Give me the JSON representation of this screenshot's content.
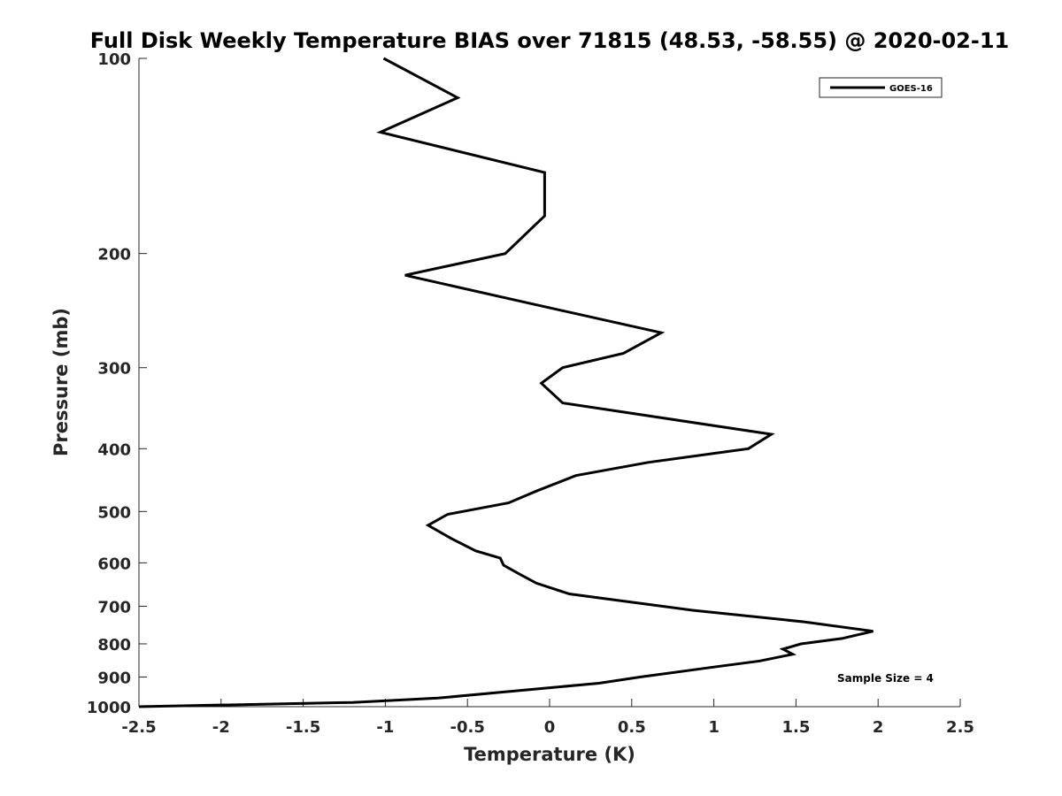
{
  "chart_data": {
    "type": "line",
    "title": "Full Disk Weekly Temperature BIAS over 71815 (48.53, -58.55) @ 2020-02-11",
    "xlabel": "Temperature (K)",
    "ylabel": "Pressure (mb)",
    "xlim": [
      -2.5,
      2.5
    ],
    "ylim": [
      100,
      1000
    ],
    "y_scale": "log",
    "y_reversed": true,
    "x_ticks": [
      "-2.5",
      "-2",
      "-1.5",
      "-1",
      "-0.5",
      "0",
      "0.5",
      "1",
      "1.5",
      "2",
      "2.5"
    ],
    "y_ticks": [
      "100",
      "200",
      "300",
      "400",
      "500",
      "600",
      "700",
      "800",
      "900",
      "1000"
    ],
    "grid": false,
    "legend": {
      "position": "top-right"
    },
    "annotation": "Sample Size = 4",
    "series": [
      {
        "name": "GOES-16",
        "color": "#000000",
        "points": [
          [
            -1.01,
            100
          ],
          [
            -0.56,
            115
          ],
          [
            -1.03,
            130
          ],
          [
            -0.03,
            150
          ],
          [
            -0.03,
            175
          ],
          [
            -0.27,
            200
          ],
          [
            -0.88,
            216
          ],
          [
            -0.08,
            240
          ],
          [
            0.68,
            265
          ],
          [
            0.45,
            285
          ],
          [
            0.08,
            300
          ],
          [
            -0.05,
            317
          ],
          [
            0.08,
            340
          ],
          [
            1.35,
            380
          ],
          [
            1.21,
            400
          ],
          [
            0.6,
            420
          ],
          [
            0.16,
            440
          ],
          [
            -0.08,
            465
          ],
          [
            -0.25,
            485
          ],
          [
            -0.62,
            505
          ],
          [
            -0.74,
            525
          ],
          [
            -0.6,
            550
          ],
          [
            -0.45,
            575
          ],
          [
            -0.3,
            590
          ],
          [
            -0.28,
            605
          ],
          [
            -0.18,
            625
          ],
          [
            -0.08,
            645
          ],
          [
            0.12,
            670
          ],
          [
            0.5,
            690
          ],
          [
            0.87,
            710
          ],
          [
            1.55,
            740
          ],
          [
            1.97,
            765
          ],
          [
            1.78,
            785
          ],
          [
            1.53,
            800
          ],
          [
            1.42,
            815
          ],
          [
            1.48,
            830
          ],
          [
            1.28,
            850
          ],
          [
            0.98,
            870
          ],
          [
            0.55,
            900
          ],
          [
            0.3,
            920
          ],
          [
            -0.3,
            950
          ],
          [
            -0.68,
            970
          ],
          [
            -1.2,
            985
          ],
          [
            -2.5,
            1000
          ]
        ]
      }
    ]
  }
}
